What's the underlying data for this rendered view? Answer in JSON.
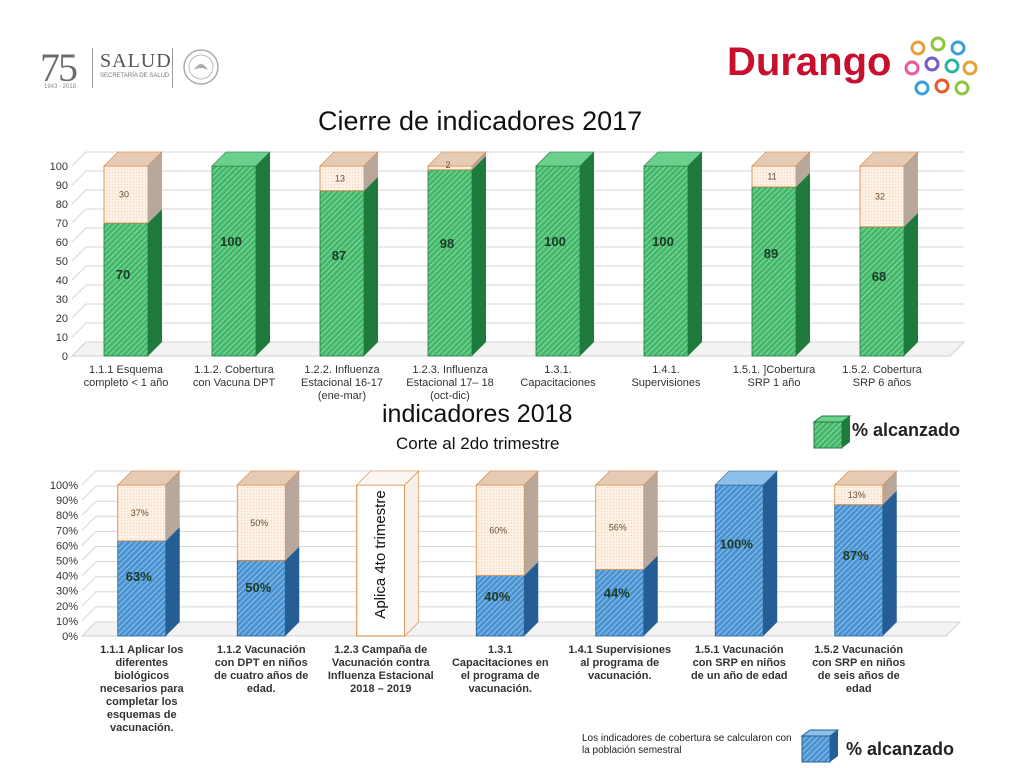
{
  "header": {
    "logo_number": "75",
    "logo_years": "1943 - 2018",
    "ministry": "SALUD",
    "ministry_sub": "SECRETARÍA DE SALUD",
    "state": "Durango"
  },
  "colors": {
    "green": "#2e9e55",
    "green_dark": "#1f7a3e",
    "blue": "#3a86c8",
    "blue_dark": "#245e94",
    "peach": "#fbe8d8",
    "peach_border": "#d9803a",
    "red": "#c8102e"
  },
  "legend_top": {
    "label": "% alcanzado"
  },
  "legend_bottom": {
    "label": "% alcanzado"
  },
  "footnote": "Los indicadores de cobertura se calcularon con la población semestral",
  "chart_data": [
    {
      "type": "bar",
      "title": "Cierre de indicadores 2017",
      "stacked": true,
      "ylim": [
        0,
        100
      ],
      "yticks": [
        "0",
        "10",
        "20",
        "30",
        "40",
        "50",
        "60",
        "70",
        "80",
        "90",
        "100"
      ],
      "categories": [
        [
          "1.1.1 Esquema",
          "completo < 1 año"
        ],
        [
          "1.1.2. Cobertura",
          "con Vacuna DPT"
        ],
        [
          "1.2.2. Influenza",
          "Estacional 16-17",
          "(ene-mar)"
        ],
        [
          "1.2.3. Influenza",
          "Estacional 17– 18",
          "(oct-dic)"
        ],
        [
          "1.3.1.",
          "Capacitaciones"
        ],
        [
          "1.4.1.",
          "Supervisiones"
        ],
        [
          "1.5.1. ]Cobertura",
          "SRP 1 año"
        ],
        [
          "1.5.2. Cobertura",
          "SRP 6 años"
        ]
      ],
      "series": [
        {
          "name": "% alcanzado",
          "values": [
            70,
            100,
            87,
            98,
            100,
            100,
            89,
            68
          ]
        },
        {
          "values": [
            30,
            null,
            13,
            2,
            null,
            null,
            11,
            32
          ]
        }
      ]
    },
    {
      "type": "bar",
      "title": "indicadores 2018",
      "subtitle": "Corte al 2do trimestre",
      "stacked": true,
      "ylim": [
        0,
        100
      ],
      "yticks": [
        "0%",
        "10%",
        "20%",
        "30%",
        "40%",
        "50%",
        "60%",
        "70%",
        "80%",
        "90%",
        "100%"
      ],
      "categories": [
        [
          "1.1.1 Aplicar los",
          "diferentes",
          "biológicos",
          "necesarios para",
          "completar los",
          "esquemas de",
          "vacunación."
        ],
        [
          "1.1.2 Vacunación",
          "con DPT en niños",
          "de cuatro años de",
          "edad."
        ],
        [
          "1.2.3 Campaña de",
          "Vacunación contra",
          "Influenza Estacional",
          "2018 – 2019"
        ],
        [
          "1.3.1",
          "Capacitaciones en",
          "el  programa de",
          "vacunación."
        ],
        [
          "1.4.1 Supervisiones",
          "al programa de",
          "vacunación."
        ],
        [
          "1.5.1 Vacunación",
          "con SRP en niños",
          "de un año de edad"
        ],
        [
          "1.5.2 Vacunación",
          "con SRP en niños",
          "de seis años de",
          "edad"
        ]
      ],
      "series": [
        {
          "name": "% alcanzado",
          "values": [
            63,
            50,
            null,
            40,
            44,
            100,
            87
          ],
          "labels": [
            "63%",
            "50%",
            "",
            "40%",
            "44%",
            "100%",
            "87%"
          ]
        },
        {
          "values": [
            37,
            50,
            null,
            60,
            56,
            null,
            13
          ],
          "labels": [
            "37%",
            "50%",
            "",
            "60%",
            "56%",
            "",
            "13%"
          ]
        }
      ],
      "annotation": "Aplica 4to trimestre"
    }
  ]
}
